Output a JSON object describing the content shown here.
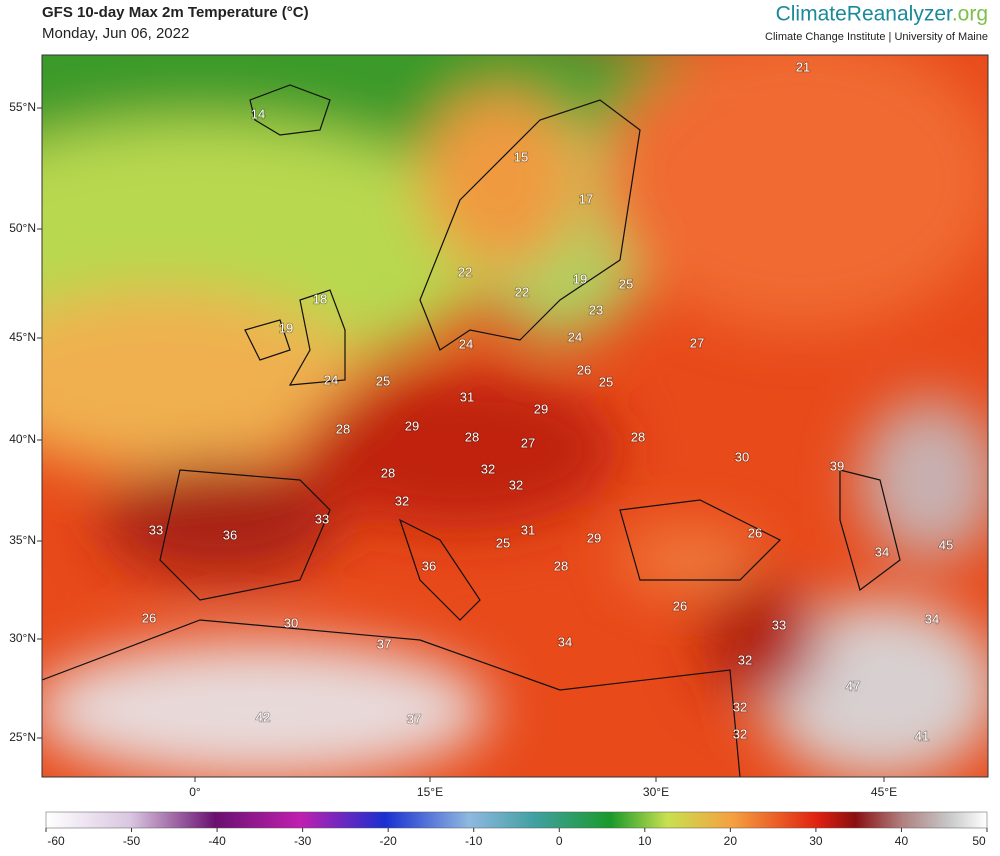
{
  "header": {
    "title": "GFS 10-day Max 2m Temperature (°C)",
    "date": "Monday, Jun 06, 2022",
    "brand": "ClimateReanalyzer",
    "brand_suffix": ".org",
    "credit": "Climate Change Institute | University of Maine"
  },
  "map": {
    "lat_labels": [
      "55°N",
      "50°N",
      "45°N",
      "40°N",
      "35°N",
      "30°N",
      "25°N"
    ],
    "lon_labels": [
      "0°",
      "15°E",
      "30°E",
      "45°E"
    ],
    "temperatures": [
      14,
      21,
      15,
      17,
      22,
      22,
      19,
      25,
      18,
      19,
      23,
      24,
      24,
      27,
      24,
      25,
      26,
      25,
      31,
      29,
      28,
      29,
      28,
      27,
      28,
      30,
      39,
      28,
      32,
      32,
      32,
      33,
      33,
      36,
      31,
      29,
      26,
      25,
      34,
      45,
      36,
      28,
      26,
      26,
      30,
      33,
      34,
      37,
      34,
      32,
      47,
      42,
      37,
      32,
      32,
      41
    ]
  },
  "colorbar": {
    "ticks": [
      -60,
      -50,
      -40,
      -30,
      -20,
      -10,
      0,
      10,
      20,
      30,
      40,
      50
    ]
  }
}
